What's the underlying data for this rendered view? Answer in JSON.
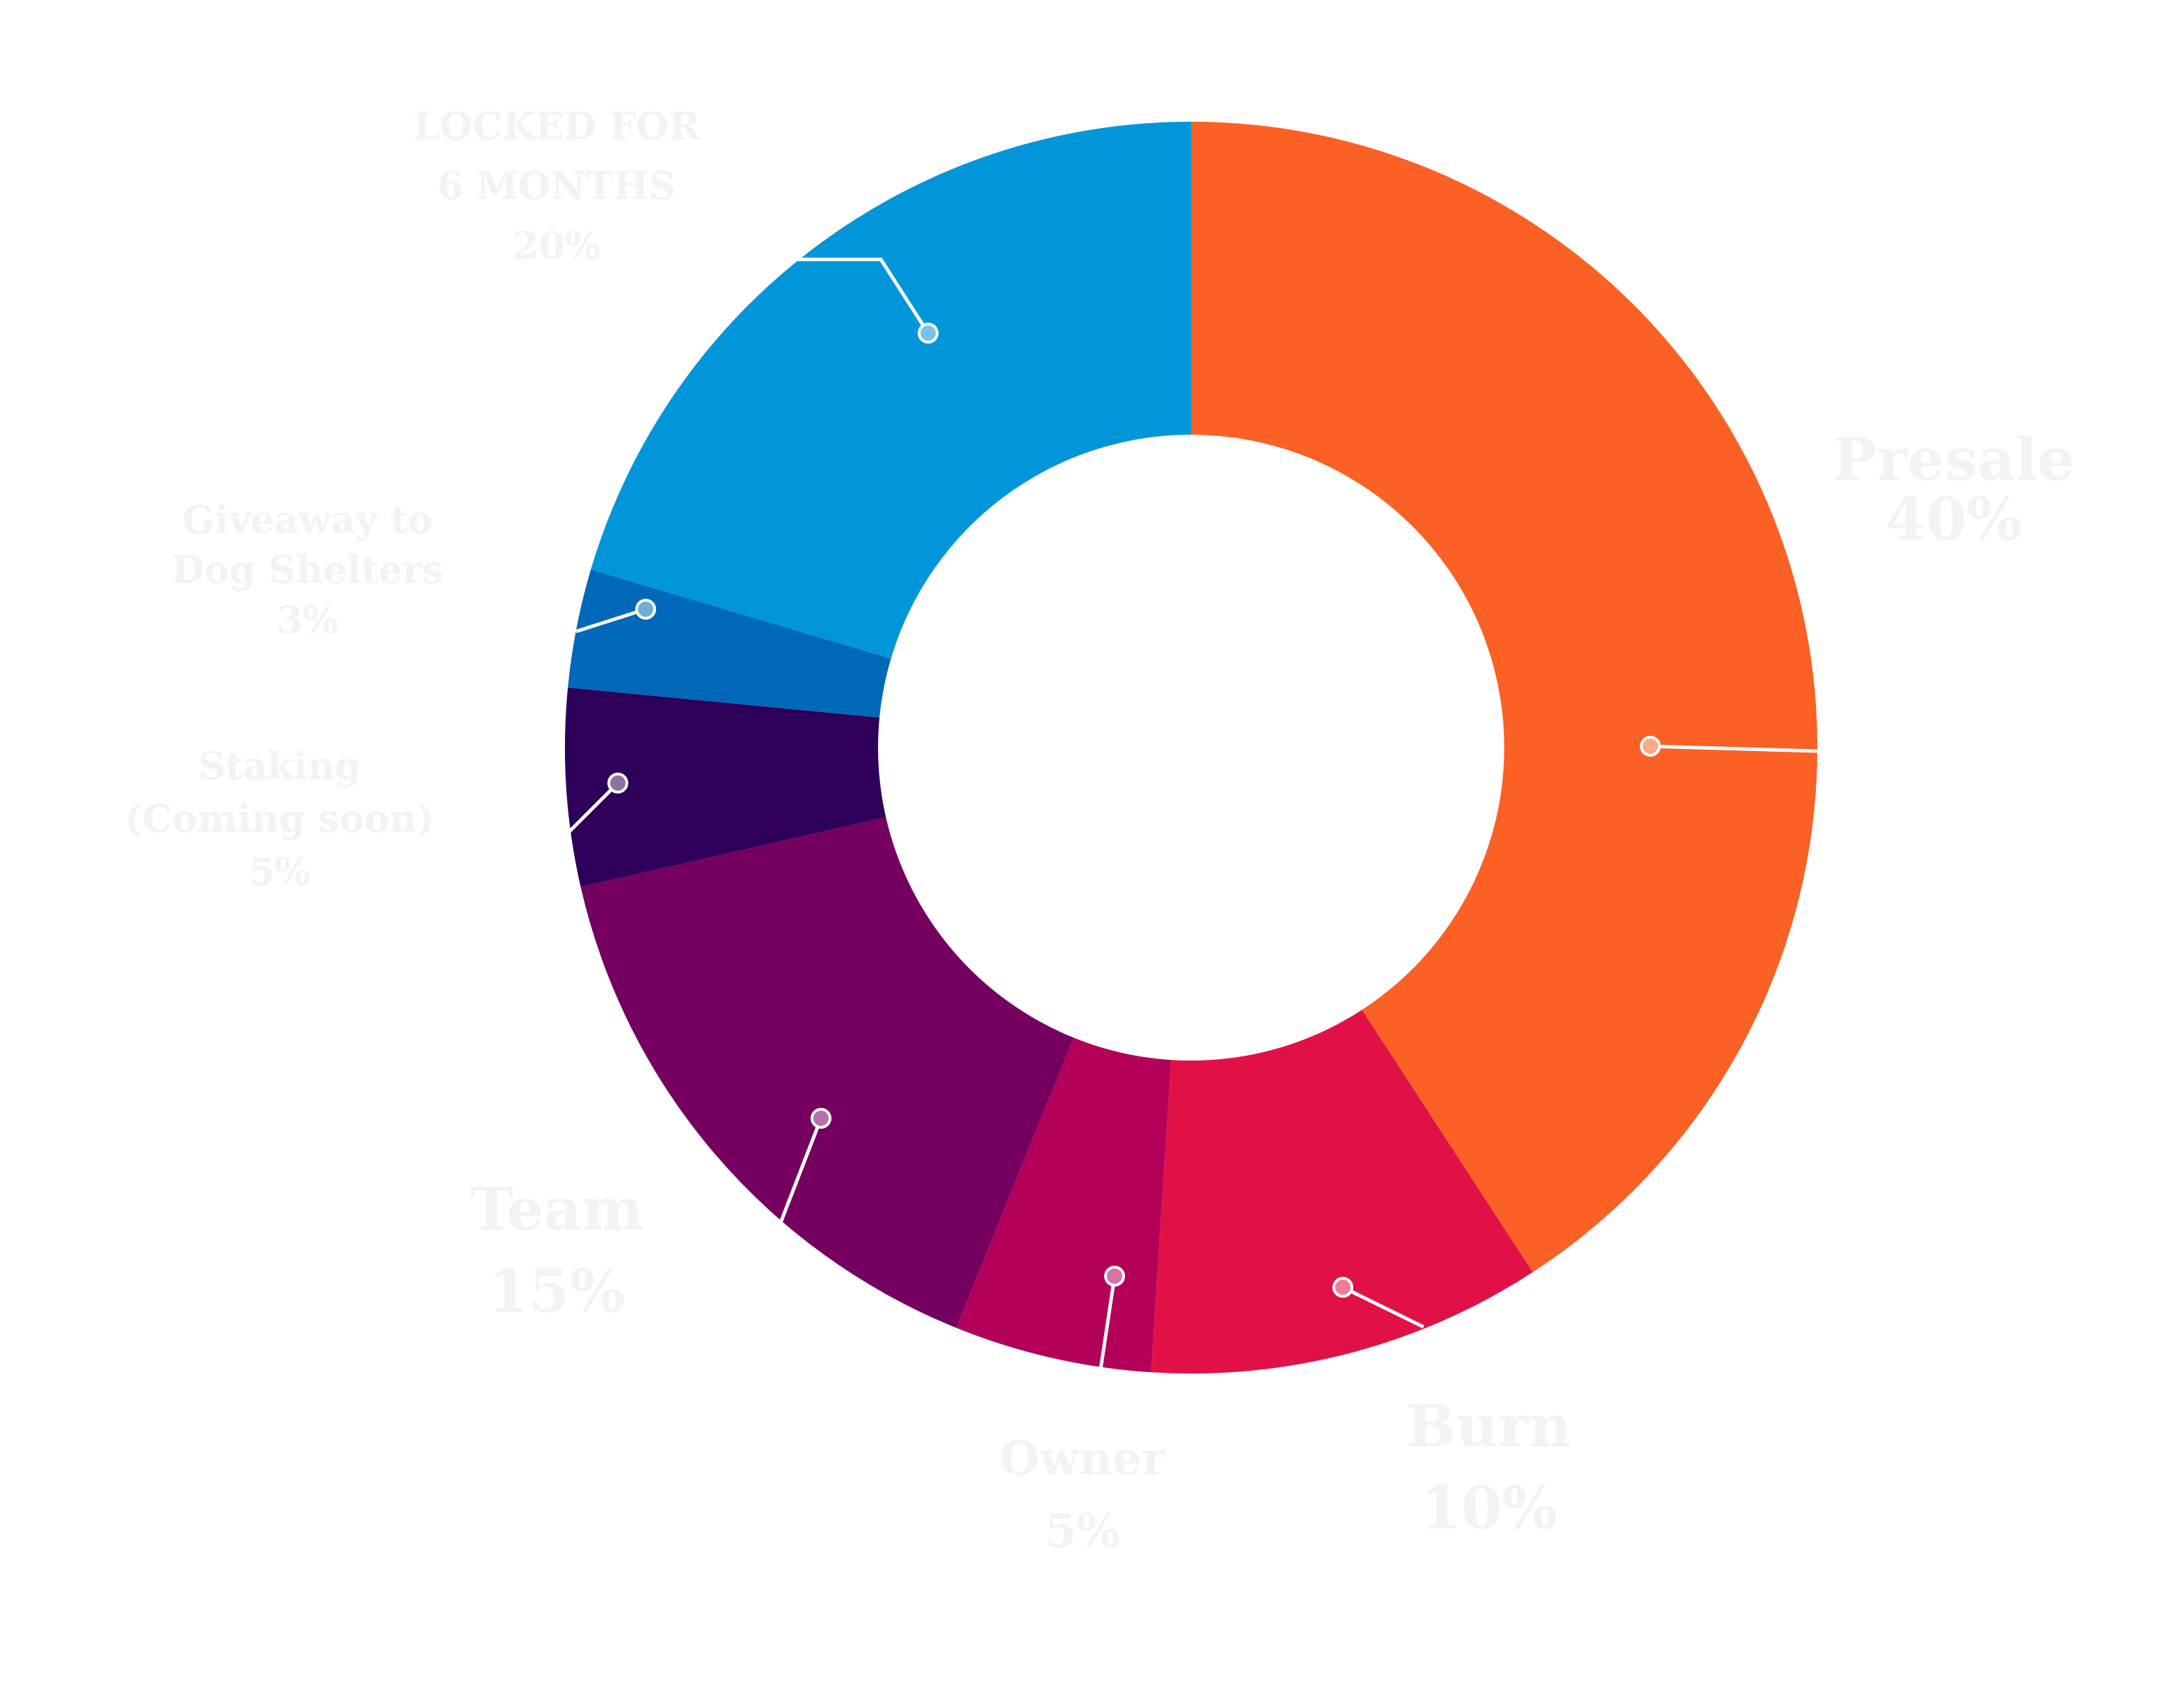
{
  "chart_data": {
    "type": "pie",
    "variant": "donut",
    "slices": [
      {
        "label": [
          "Presale"
        ],
        "value_label": "40%",
        "value": 40,
        "color": "#fb6024"
      },
      {
        "label": [
          "Burn"
        ],
        "value_label": "10%",
        "value": 10,
        "color": "#e11148"
      },
      {
        "label": [
          "Owner"
        ],
        "value_label": "5%",
        "value": 5,
        "color": "#b3015a"
      },
      {
        "label": [
          "Team"
        ],
        "value_label": "15%",
        "value": 15,
        "color": "#75005f"
      },
      {
        "label": [
          "Staking",
          "(Coming soon)"
        ],
        "value_label": "5%",
        "value": 5,
        "color": "#2e005a"
      },
      {
        "label": [
          "Giveaway to",
          "Dog Shelters"
        ],
        "value_label": "3%",
        "value": 3,
        "color": "#0068b8"
      },
      {
        "label": [
          "LOCKED FOR",
          "6 MONTHS"
        ],
        "value_label": "20%",
        "value": 20,
        "color": "#0096d9"
      }
    ],
    "legend": "none"
  }
}
